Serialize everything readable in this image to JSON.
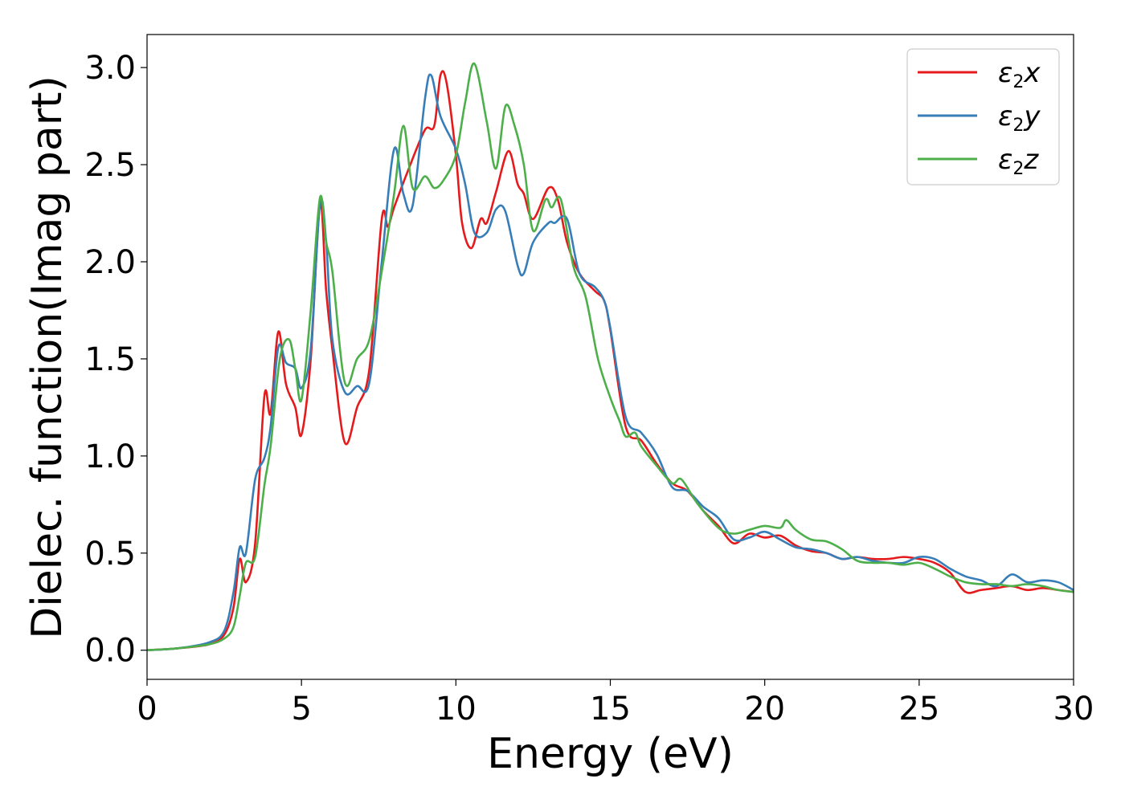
{
  "chart_data": {
    "type": "line",
    "title": "",
    "xlabel": "Energy (eV)",
    "ylabel": "Dielec. function(Imag part)",
    "xlim": [
      0,
      30
    ],
    "ylim": [
      -0.15,
      3.17
    ],
    "xticks": [
      0,
      5,
      10,
      15,
      20,
      25,
      30
    ],
    "yticks": [
      0.0,
      0.5,
      1.0,
      1.5,
      2.0,
      2.5,
      3.0
    ],
    "xtick_labels": [
      "0",
      "5",
      "10",
      "15",
      "20",
      "25",
      "30"
    ],
    "ytick_labels": [
      "0.0",
      "0.5",
      "1.0",
      "1.5",
      "2.0",
      "2.5",
      "3.0"
    ],
    "grid": false,
    "legend_position": "top-right",
    "series": [
      {
        "name": "ε₂x",
        "base": "ε",
        "sub": "2",
        "suffix": "x",
        "color": "#e41a1c",
        "x": [
          0,
          1,
          2,
          2.5,
          2.8,
          3.0,
          3.2,
          3.5,
          3.8,
          4.0,
          4.25,
          4.5,
          4.8,
          5.0,
          5.3,
          5.6,
          5.8,
          6.0,
          6.4,
          6.8,
          7.2,
          7.6,
          7.8,
          8.0,
          8.5,
          9.0,
          9.3,
          9.5,
          9.7,
          10.0,
          10.2,
          10.5,
          10.8,
          11.0,
          11.3,
          11.7,
          12.0,
          12.2,
          12.5,
          13.0,
          13.3,
          13.6,
          14.0,
          14.5,
          14.8,
          15.0,
          15.5,
          16.0,
          16.5,
          17.0,
          17.5,
          18.0,
          18.5,
          19.0,
          19.5,
          20.0,
          20.5,
          21.0,
          21.5,
          22.0,
          22.5,
          23.0,
          23.5,
          24.0,
          24.5,
          25.0,
          25.5,
          26.0,
          26.5,
          27.0,
          27.5,
          28.0,
          28.5,
          29.0,
          29.5,
          30.0
        ],
        "y": [
          0.0,
          0.01,
          0.03,
          0.08,
          0.22,
          0.47,
          0.35,
          0.55,
          1.31,
          1.22,
          1.64,
          1.37,
          1.25,
          1.11,
          1.5,
          2.3,
          1.85,
          1.55,
          1.07,
          1.25,
          1.45,
          2.22,
          2.18,
          2.28,
          2.49,
          2.68,
          2.7,
          2.96,
          2.92,
          2.55,
          2.2,
          2.07,
          2.22,
          2.2,
          2.36,
          2.57,
          2.4,
          2.35,
          2.22,
          2.38,
          2.32,
          2.1,
          1.94,
          1.85,
          1.8,
          1.65,
          1.15,
          1.08,
          0.96,
          0.86,
          0.82,
          0.72,
          0.64,
          0.55,
          0.6,
          0.58,
          0.59,
          0.54,
          0.51,
          0.5,
          0.47,
          0.48,
          0.47,
          0.47,
          0.48,
          0.47,
          0.45,
          0.4,
          0.3,
          0.31,
          0.32,
          0.33,
          0.31,
          0.32,
          0.31,
          0.3
        ]
      },
      {
        "name": "ε₂y",
        "base": "ε",
        "sub": "2",
        "suffix": "y",
        "color": "#377eb8",
        "x": [
          0,
          1,
          2,
          2.5,
          2.8,
          3.0,
          3.2,
          3.5,
          3.8,
          4.0,
          4.25,
          4.5,
          4.8,
          5.0,
          5.3,
          5.6,
          5.8,
          6.0,
          6.4,
          6.8,
          7.2,
          7.6,
          8.0,
          8.3,
          8.6,
          9.0,
          9.2,
          9.5,
          10.0,
          10.3,
          10.6,
          11.0,
          11.3,
          11.6,
          12.0,
          12.2,
          12.5,
          13.0,
          13.2,
          13.6,
          14.0,
          14.5,
          14.8,
          15.0,
          15.5,
          16.0,
          16.5,
          17.0,
          17.5,
          18.0,
          18.5,
          19.0,
          19.5,
          20.0,
          20.5,
          21.0,
          21.5,
          22.0,
          22.5,
          23.0,
          23.5,
          24.0,
          24.5,
          25.0,
          25.5,
          26.0,
          26.5,
          27.0,
          27.5,
          28.0,
          28.5,
          29.0,
          29.5,
          30.0
        ],
        "y": [
          0.0,
          0.01,
          0.04,
          0.1,
          0.3,
          0.53,
          0.5,
          0.88,
          0.99,
          1.15,
          1.56,
          1.48,
          1.45,
          1.35,
          1.55,
          2.3,
          2.1,
          1.6,
          1.33,
          1.36,
          1.38,
          2.0,
          2.58,
          2.35,
          2.29,
          2.84,
          2.96,
          2.75,
          2.58,
          2.4,
          2.15,
          2.15,
          2.27,
          2.26,
          1.98,
          1.94,
          2.1,
          2.2,
          2.2,
          2.22,
          1.94,
          1.87,
          1.8,
          1.66,
          1.2,
          1.12,
          1.01,
          0.84,
          0.82,
          0.74,
          0.68,
          0.57,
          0.58,
          0.61,
          0.57,
          0.53,
          0.52,
          0.5,
          0.47,
          0.48,
          0.46,
          0.45,
          0.45,
          0.48,
          0.47,
          0.42,
          0.38,
          0.36,
          0.33,
          0.39,
          0.35,
          0.36,
          0.35,
          0.31
        ]
      },
      {
        "name": "ε₂z",
        "base": "ε",
        "sub": "2",
        "suffix": "z",
        "color": "#4daf4a",
        "x": [
          0,
          1,
          2,
          2.5,
          2.8,
          3.0,
          3.2,
          3.5,
          3.8,
          4.0,
          4.3,
          4.6,
          4.8,
          5.0,
          5.3,
          5.6,
          5.8,
          6.0,
          6.4,
          6.8,
          7.2,
          7.6,
          8.0,
          8.3,
          8.6,
          9.0,
          9.3,
          9.6,
          10.0,
          10.3,
          10.6,
          11.0,
          11.3,
          11.6,
          11.9,
          12.2,
          12.5,
          12.9,
          13.1,
          13.4,
          13.8,
          14.2,
          14.6,
          15.0,
          15.3,
          15.5,
          15.8,
          16.0,
          16.5,
          17.0,
          17.3,
          17.8,
          18.5,
          19.0,
          19.5,
          20.0,
          20.5,
          20.7,
          21.0,
          21.5,
          22.0,
          22.5,
          23.0,
          23.5,
          24.0,
          24.5,
          25.0,
          25.5,
          26.0,
          26.5,
          27.0,
          27.5,
          28.0,
          28.5,
          29.0,
          29.5,
          30.0
        ],
        "y": [
          0.0,
          0.01,
          0.03,
          0.06,
          0.12,
          0.28,
          0.45,
          0.48,
          0.85,
          1.05,
          1.5,
          1.6,
          1.45,
          1.29,
          1.75,
          2.33,
          2.1,
          1.95,
          1.38,
          1.5,
          1.6,
          1.95,
          2.35,
          2.7,
          2.38,
          2.44,
          2.38,
          2.42,
          2.55,
          2.82,
          3.02,
          2.72,
          2.48,
          2.8,
          2.7,
          2.5,
          2.16,
          2.32,
          2.28,
          2.32,
          1.98,
          1.82,
          1.5,
          1.3,
          1.18,
          1.1,
          1.12,
          1.05,
          0.95,
          0.86,
          0.88,
          0.76,
          0.63,
          0.6,
          0.62,
          0.64,
          0.63,
          0.67,
          0.62,
          0.57,
          0.56,
          0.52,
          0.46,
          0.45,
          0.45,
          0.44,
          0.45,
          0.42,
          0.38,
          0.35,
          0.34,
          0.34,
          0.33,
          0.34,
          0.33,
          0.31,
          0.3
        ]
      }
    ]
  }
}
